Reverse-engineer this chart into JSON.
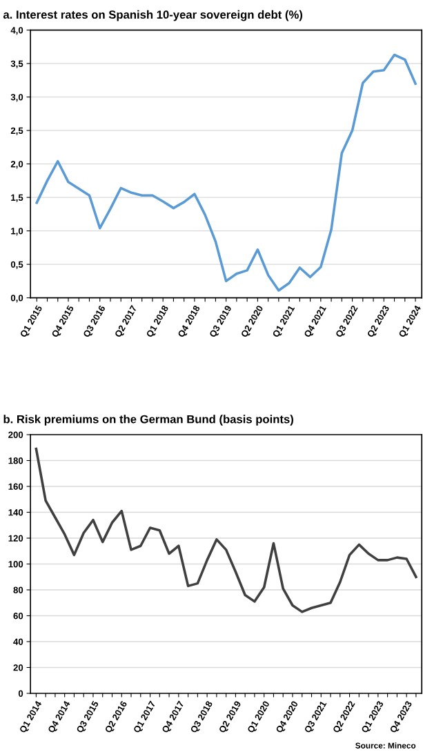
{
  "chart_data": [
    {
      "type": "line",
      "title": "a. Interest rates on Spanish 10-year sovereign debt (%)",
      "categories": [
        "Q1 2015",
        null,
        null,
        "Q4 2015",
        null,
        null,
        "Q3 2016",
        null,
        null,
        "Q2 2017",
        null,
        null,
        "Q1 2018",
        null,
        null,
        "Q4 2018",
        null,
        null,
        "Q3 2019",
        null,
        null,
        "Q2 2020",
        null,
        null,
        "Q1 2021",
        null,
        null,
        "Q4 2021",
        null,
        null,
        "Q3 2022",
        null,
        null,
        "Q2 2023",
        null,
        null,
        "Q1 2024"
      ],
      "series": [
        {
          "color": "#5b9bd5",
          "values": [
            1.42,
            1.75,
            2.04,
            1.73,
            1.63,
            1.53,
            1.04,
            1.33,
            1.64,
            1.57,
            1.53,
            1.53,
            1.44,
            1.34,
            1.43,
            1.55,
            1.24,
            0.84,
            0.25,
            0.36,
            0.41,
            0.72,
            0.34,
            0.11,
            0.22,
            0.45,
            0.31,
            0.46,
            1.02,
            2.16,
            2.5,
            3.21,
            3.38,
            3.4,
            3.63,
            3.56,
            3.2
          ]
        }
      ],
      "ylim": [
        0,
        4
      ],
      "yticks": [
        {
          "value": 0,
          "label": "0,0"
        },
        {
          "value": 0.5,
          "label": "0,5"
        },
        {
          "value": 1,
          "label": "1,0"
        },
        {
          "value": 1.5,
          "label": "1,5"
        },
        {
          "value": 2,
          "label": "2,0"
        },
        {
          "value": 2.5,
          "label": "2,5"
        },
        {
          "value": 3,
          "label": "3,0"
        },
        {
          "value": 3.5,
          "label": "3,5"
        },
        {
          "value": 4,
          "label": "4,0"
        }
      ],
      "grid": "y",
      "legend": false,
      "marker": "none",
      "line_style": "solid"
    },
    {
      "type": "line",
      "title": "b. Risk premiums on the German Bund (basis points)",
      "categories": [
        "Q1 2014",
        null,
        null,
        "Q4 2014",
        null,
        null,
        "Q3 2015",
        null,
        null,
        "Q2 2016",
        null,
        null,
        "Q1 2017",
        null,
        null,
        "Q4 2017",
        null,
        null,
        "Q3 2018",
        null,
        null,
        "Q2 2019",
        null,
        null,
        "Q1 2020",
        null,
        null,
        "Q4 2020",
        null,
        null,
        "Q3 2021",
        null,
        null,
        "Q2 2022",
        null,
        null,
        "Q1 2023",
        null,
        null,
        "Q4 2023",
        null
      ],
      "series": [
        {
          "color": "#404040",
          "values": [
            189,
            149,
            136,
            123,
            107,
            124,
            134,
            117,
            132,
            141,
            111,
            114,
            128,
            126,
            108,
            114,
            83,
            85,
            103,
            119,
            111,
            94,
            76,
            71,
            82,
            116,
            81,
            68,
            63,
            66,
            68,
            70,
            86,
            107,
            115,
            108,
            103,
            103,
            105,
            104,
            90
          ]
        }
      ],
      "ylim": [
        0,
        200
      ],
      "yticks": [
        0,
        20,
        40,
        60,
        80,
        100,
        120,
        140,
        160,
        180,
        200
      ],
      "grid": "y",
      "legend": false,
      "marker": "none",
      "line_style": "solid",
      "annotations": [
        "Source: Mineco"
      ]
    }
  ]
}
